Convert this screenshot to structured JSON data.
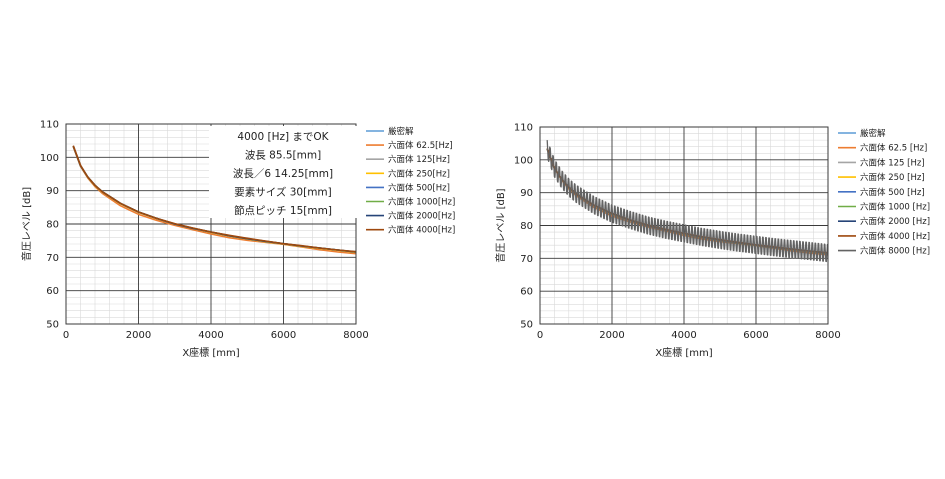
{
  "chart_data": [
    {
      "type": "line",
      "xlabel": "X座標 [mm]",
      "ylabel": "音圧レベル [dB]",
      "xlim": [
        0,
        8000
      ],
      "ylim": [
        50,
        110
      ],
      "xticks": [
        "0",
        "2000",
        "4000",
        "6000",
        "8000"
      ],
      "yticks": [
        "50",
        "60",
        "70",
        "80",
        "90",
        "100",
        "110"
      ],
      "grid": "major+minor",
      "legend_position": "right",
      "annotation": [
        "4000 [Hz] までOK",
        "波長 85.5[mm]",
        "波長／6  14.25[mm]",
        "要素サイズ 30[mm]",
        "節点ピッチ 15[mm]"
      ],
      "x": [
        200,
        400,
        600,
        800,
        1000,
        1500,
        2000,
        2500,
        3000,
        3500,
        4000,
        4500,
        5000,
        5500,
        6000,
        6500,
        7000,
        7500,
        8000
      ],
      "series": [
        {
          "name": "厳密解",
          "color": "#5b9bd5",
          "values": [
            103.4,
            97.5,
            94.1,
            91.6,
            89.7,
            86.2,
            83.6,
            81.7,
            80.0,
            78.7,
            77.6,
            76.5,
            75.6,
            74.8,
            74.1,
            73.4,
            72.8,
            72.2,
            71.6
          ]
        },
        {
          "name": "六面体 62.5[Hz]",
          "color": "#ed7d31",
          "values": [
            103.2,
            97.3,
            93.8,
            91.2,
            89.2,
            85.5,
            82.9,
            81.1,
            79.6,
            78.3,
            77.0,
            75.9,
            75.1,
            74.5,
            73.9,
            73.1,
            72.3,
            71.6,
            71.1
          ]
        },
        {
          "name": "六面体 125[Hz]",
          "color": "#a5a5a5",
          "values": [
            103.4,
            97.5,
            94.0,
            91.5,
            89.6,
            86.1,
            83.5,
            81.6,
            80.0,
            78.7,
            77.5,
            76.4,
            75.5,
            74.7,
            74.0,
            73.3,
            72.7,
            72.1,
            71.5
          ]
        },
        {
          "name": "六面体 250[Hz]",
          "color": "#ffc000",
          "values": [
            103.4,
            97.5,
            94.0,
            91.5,
            89.6,
            86.1,
            83.5,
            81.6,
            80.0,
            78.7,
            77.5,
            76.4,
            75.5,
            74.7,
            74.0,
            73.3,
            72.7,
            72.1,
            71.5
          ]
        },
        {
          "name": "六面体 500[Hz]",
          "color": "#4472c4",
          "values": [
            103.4,
            97.5,
            94.1,
            91.6,
            89.7,
            86.2,
            83.6,
            81.7,
            80.0,
            78.7,
            77.6,
            76.5,
            75.6,
            74.8,
            74.1,
            73.4,
            72.8,
            72.2,
            71.6
          ]
        },
        {
          "name": "六面体 1000[Hz]",
          "color": "#70ad47",
          "values": [
            103.4,
            97.5,
            94.1,
            91.6,
            89.7,
            86.2,
            83.6,
            81.7,
            80.0,
            78.7,
            77.6,
            76.5,
            75.6,
            74.8,
            74.1,
            73.4,
            72.8,
            72.2,
            71.6
          ]
        },
        {
          "name": "六面体 2000[Hz]",
          "color": "#264478",
          "values": [
            103.4,
            97.5,
            94.1,
            91.6,
            89.7,
            86.2,
            83.6,
            81.7,
            80.0,
            78.7,
            77.6,
            76.5,
            75.6,
            74.8,
            74.1,
            73.4,
            72.8,
            72.2,
            71.6
          ]
        },
        {
          "name": "六面体 4000[Hz]",
          "color": "#9e480e",
          "values": [
            103.5,
            97.6,
            94.1,
            91.6,
            89.7,
            86.2,
            83.6,
            81.7,
            80.1,
            78.8,
            77.6,
            76.6,
            75.7,
            74.9,
            74.1,
            73.5,
            72.8,
            72.2,
            71.7
          ]
        }
      ]
    },
    {
      "type": "line",
      "xlabel": "X座標 [mm]",
      "ylabel": "音圧レベル [dB]",
      "xlim": [
        0,
        8000
      ],
      "ylim": [
        50,
        110
      ],
      "xticks": [
        "0",
        "2000",
        "4000",
        "6000",
        "8000"
      ],
      "yticks": [
        "50",
        "60",
        "70",
        "80",
        "90",
        "100",
        "110"
      ],
      "grid": "major+minor",
      "legend_position": "right",
      "x": [
        200,
        400,
        600,
        800,
        1000,
        1500,
        2000,
        2500,
        3000,
        3500,
        4000,
        4500,
        5000,
        5500,
        6000,
        6500,
        7000,
        7500,
        8000
      ],
      "series": [
        {
          "name": "厳密解",
          "color": "#5b9bd5",
          "values": [
            103.4,
            97.5,
            94.1,
            91.6,
            89.7,
            86.2,
            83.6,
            81.7,
            80.0,
            78.7,
            77.6,
            76.5,
            75.6,
            74.8,
            74.1,
            73.4,
            72.8,
            72.2,
            71.6
          ]
        },
        {
          "name": "六面体 62.5 [Hz]",
          "color": "#ed7d31",
          "values": [
            103.2,
            97.3,
            93.8,
            91.2,
            89.2,
            85.5,
            82.9,
            81.1,
            79.6,
            78.3,
            77.0,
            75.9,
            75.1,
            74.5,
            73.9,
            73.1,
            72.3,
            71.6,
            71.1
          ]
        },
        {
          "name": "六面体 125 [Hz]",
          "color": "#a5a5a5",
          "values": [
            103.4,
            97.5,
            94.0,
            91.5,
            89.6,
            86.1,
            83.5,
            81.6,
            80.0,
            78.7,
            77.5,
            76.4,
            75.5,
            74.7,
            74.0,
            73.3,
            72.7,
            72.1,
            71.5
          ]
        },
        {
          "name": "六面体 250 [Hz]",
          "color": "#ffc000",
          "values": [
            103.4,
            97.5,
            94.0,
            91.5,
            89.6,
            86.1,
            83.5,
            81.6,
            80.0,
            78.7,
            77.5,
            76.4,
            75.5,
            74.7,
            74.0,
            73.3,
            72.7,
            72.1,
            71.5
          ]
        },
        {
          "name": "六面体 500 [Hz]",
          "color": "#4472c4",
          "values": [
            103.4,
            97.5,
            94.1,
            91.6,
            89.7,
            86.2,
            83.6,
            81.7,
            80.0,
            78.7,
            77.6,
            76.5,
            75.6,
            74.8,
            74.1,
            73.4,
            72.8,
            72.2,
            71.6
          ]
        },
        {
          "name": "六面体 1000 [Hz]",
          "color": "#70ad47",
          "values": [
            103.4,
            97.5,
            94.1,
            91.6,
            89.7,
            86.2,
            83.6,
            81.7,
            80.0,
            78.7,
            77.6,
            76.5,
            75.6,
            74.8,
            74.1,
            73.4,
            72.8,
            72.2,
            71.6
          ]
        },
        {
          "name": "六面体 2000 [Hz]",
          "color": "#264478",
          "values": [
            103.4,
            97.5,
            94.1,
            91.6,
            89.7,
            86.2,
            83.6,
            81.7,
            80.0,
            78.7,
            77.6,
            76.5,
            75.6,
            74.8,
            74.1,
            73.4,
            72.8,
            72.2,
            71.6
          ]
        },
        {
          "name": "六面体 4000 [Hz]",
          "color": "#9e480e",
          "values": [
            103.5,
            97.6,
            94.1,
            91.6,
            89.7,
            86.2,
            83.6,
            81.7,
            80.1,
            78.8,
            77.6,
            76.6,
            75.7,
            74.9,
            74.1,
            73.5,
            72.8,
            72.2,
            71.7
          ]
        },
        {
          "name": "六面体 8000 [Hz]",
          "color": "#636363",
          "oscillation": {
            "period_mm": 85.7,
            "amplitude_db_start": 3.0,
            "amplitude_db_end": 3.0
          },
          "values": [
            103.4,
            97.5,
            94.1,
            91.6,
            89.7,
            86.2,
            83.6,
            81.7,
            80.0,
            78.7,
            77.6,
            76.5,
            75.6,
            74.8,
            74.1,
            73.4,
            72.8,
            72.2,
            71.6
          ]
        }
      ]
    }
  ]
}
